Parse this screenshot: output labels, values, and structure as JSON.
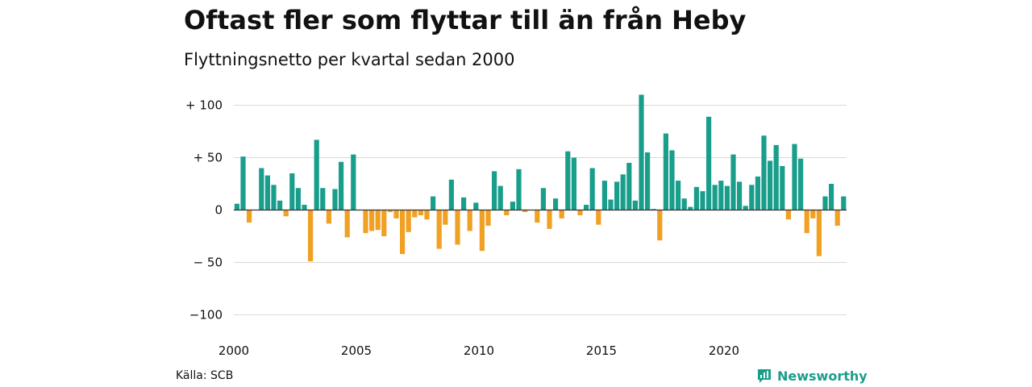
{
  "title": "Oftast fler som flyttar till än från Heby",
  "subtitle": "Flyttningsnetto per kvartal sedan 2000",
  "source": "Källa: SCB",
  "brand": {
    "name": "Newsworthy",
    "icon": "newsworthy-logo-icon"
  },
  "colors": {
    "positive": "#1a9e8c",
    "negative": "#f0a023",
    "grid": "#d9d9d9",
    "zero": "#333333"
  },
  "chart_data": {
    "type": "bar",
    "x_start": 2000,
    "x_step_years": 0.25,
    "ylim": [
      -100,
      110
    ],
    "y_ticks": [
      100,
      50,
      0,
      -50,
      -100
    ],
    "y_tick_labels": [
      "+ 100",
      "+ 50",
      "0",
      "− 50",
      "−100"
    ],
    "x_ticks": [
      2000,
      2005,
      2010,
      2015,
      2020
    ],
    "x_tick_labels": [
      "2000",
      "2005",
      "2010",
      "2015",
      "2020"
    ],
    "grid": true,
    "values": [
      6,
      51,
      -12,
      0,
      40,
      33,
      24,
      9,
      -6,
      35,
      21,
      5,
      -49,
      67,
      21,
      -13,
      20,
      46,
      -26,
      53,
      0,
      -22,
      -20,
      -19,
      -25,
      -2,
      -8,
      -42,
      -21,
      -7,
      -5,
      -9,
      13,
      -37,
      -14,
      29,
      -33,
      12,
      -20,
      7,
      -39,
      -15,
      37,
      23,
      -5,
      8,
      39,
      -2,
      0,
      -12,
      21,
      -18,
      11,
      -8,
      56,
      50,
      -5,
      5,
      40,
      -14,
      28,
      10,
      27,
      34,
      45,
      9,
      110,
      55,
      1,
      -29,
      73,
      57,
      28,
      11,
      3,
      22,
      18,
      89,
      24,
      28,
      23,
      53,
      27,
      4,
      24,
      32,
      71,
      47,
      62,
      42,
      -9,
      63,
      49,
      -22,
      -8,
      -44,
      13,
      25,
      -15,
      13
    ]
  }
}
